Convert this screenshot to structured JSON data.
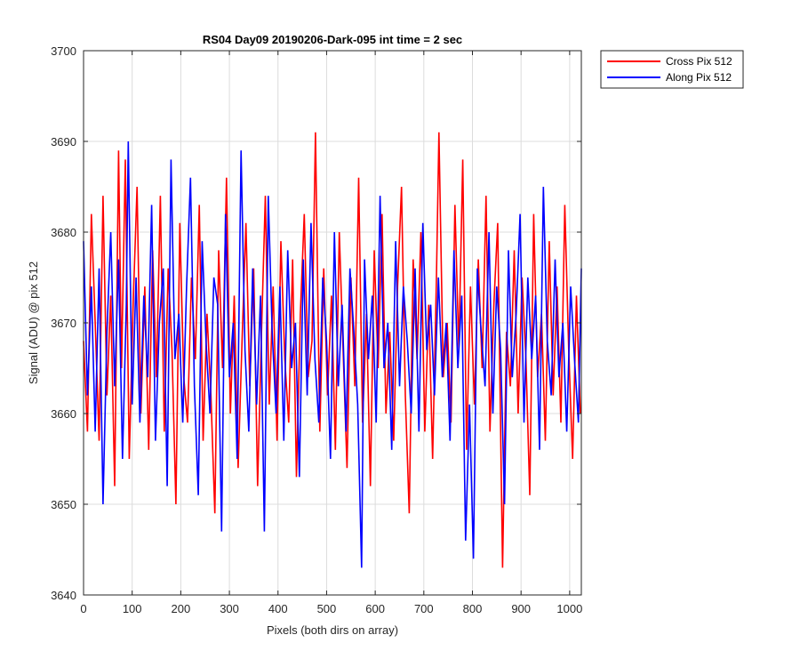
{
  "chart_data": {
    "type": "line",
    "title": "RS04 Day09 20190206-Dark-095 int time = 2 sec",
    "xlabel": "Pixels (both dirs on array)",
    "ylabel": "Signal (ADU) @ pix 512",
    "xlim": [
      0,
      1024
    ],
    "ylim": [
      3640,
      3700
    ],
    "xticks": [
      "0",
      "100",
      "200",
      "300",
      "400",
      "500",
      "600",
      "700",
      "800",
      "900",
      "1000"
    ],
    "yticks": [
      "3640",
      "3650",
      "3660",
      "3670",
      "3680",
      "3690",
      "3700"
    ],
    "grid": true,
    "legend_position": "outside-top-right",
    "series": [
      {
        "name": "Cross Pix 512",
        "color": "#ff0000",
        "x": [
          0,
          8,
          16,
          24,
          32,
          40,
          48,
          56,
          64,
          72,
          78,
          86,
          94,
          102,
          110,
          118,
          126,
          134,
          142,
          150,
          158,
          166,
          174,
          182,
          190,
          198,
          206,
          214,
          222,
          230,
          238,
          246,
          254,
          262,
          270,
          278,
          286,
          294,
          302,
          310,
          318,
          326,
          334,
          342,
          350,
          358,
          366,
          374,
          382,
          390,
          398,
          406,
          414,
          422,
          430,
          438,
          446,
          454,
          462,
          470,
          477,
          486,
          494,
          502,
          510,
          518,
          526,
          534,
          542,
          550,
          558,
          566,
          574,
          582,
          590,
          598,
          606,
          614,
          622,
          630,
          638,
          646,
          654,
          662,
          670,
          678,
          686,
          694,
          702,
          710,
          718,
          726,
          731,
          740,
          748,
          756,
          764,
          772,
          780,
          788,
          796,
          804,
          812,
          820,
          828,
          836,
          844,
          852,
          862,
          870,
          878,
          886,
          894,
          902,
          910,
          918,
          926,
          934,
          942,
          950,
          958,
          966,
          974,
          982,
          990,
          998,
          1006,
          1014,
          1022
        ],
        "values": [
          3668,
          3658,
          3682,
          3670,
          3657,
          3684,
          3662,
          3673,
          3652,
          3689,
          3665,
          3688,
          3655,
          3672,
          3685,
          3660,
          3674,
          3656,
          3678,
          3664,
          3684,
          3658,
          3676,
          3667,
          3650,
          3681,
          3664,
          3659,
          3675,
          3666,
          3683,
          3657,
          3671,
          3662,
          3649,
          3678,
          3665,
          3686,
          3660,
          3673,
          3654,
          3668,
          3681,
          3663,
          3676,
          3652,
          3669,
          3684,
          3661,
          3674,
          3657,
          3679,
          3666,
          3659,
          3677,
          3653,
          3671,
          3682,
          3664,
          3668,
          3691,
          3658,
          3676,
          3662,
          3673,
          3656,
          3680,
          3667,
          3654,
          3675,
          3663,
          3686,
          3659,
          3671,
          3652,
          3678,
          3665,
          3682,
          3660,
          3669,
          3657,
          3674,
          3685,
          3662,
          3649,
          3677,
          3666,
          3680,
          3658,
          3672,
          3655,
          3675,
          3691,
          3664,
          3670,
          3659,
          3683,
          3667,
          3688,
          3656,
          3674,
          3661,
          3677,
          3665,
          3684,
          3658,
          3672,
          3681,
          3643,
          3669,
          3663,
          3678,
          3660,
          3675,
          3666,
          3651,
          3682,
          3664,
          3671,
          3657,
          3679,
          3662,
          3674,
          3659,
          3683,
          3667,
          3655,
          3673,
          3660
        ]
      },
      {
        "name": "Along Pix 512",
        "color": "#0000ff",
        "x": [
          0,
          8,
          16,
          24,
          32,
          40,
          48,
          56,
          64,
          72,
          80,
          88,
          92,
          100,
          108,
          116,
          124,
          132,
          140,
          148,
          156,
          164,
          172,
          180,
          188,
          196,
          204,
          212,
          220,
          228,
          236,
          244,
          252,
          260,
          268,
          276,
          284,
          292,
          300,
          308,
          316,
          324,
          332,
          340,
          348,
          356,
          364,
          372,
          380,
          388,
          396,
          404,
          412,
          420,
          428,
          436,
          444,
          452,
          460,
          468,
          476,
          484,
          492,
          500,
          508,
          516,
          524,
          532,
          540,
          548,
          556,
          564,
          572,
          578,
          586,
          594,
          602,
          610,
          618,
          626,
          634,
          642,
          650,
          658,
          666,
          674,
          682,
          690,
          698,
          706,
          714,
          722,
          730,
          738,
          746,
          754,
          762,
          770,
          778,
          786,
          794,
          802,
          810,
          818,
          826,
          834,
          842,
          850,
          858,
          866,
          874,
          882,
          890,
          898,
          906,
          914,
          922,
          930,
          938,
          946,
          954,
          962,
          970,
          978,
          986,
          994,
          1002,
          1010,
          1018,
          1024
        ],
        "values": [
          3679,
          3662,
          3674,
          3658,
          3676,
          3650,
          3669,
          3680,
          3663,
          3677,
          3655,
          3672,
          3690,
          3661,
          3675,
          3659,
          3673,
          3664,
          3683,
          3657,
          3670,
          3676,
          3652,
          3688,
          3666,
          3671,
          3659,
          3674,
          3686,
          3663,
          3651,
          3679,
          3668,
          3660,
          3675,
          3672,
          3647,
          3682,
          3664,
          3670,
          3655,
          3689,
          3667,
          3658,
          3676,
          3661,
          3673,
          3647,
          3684,
          3669,
          3660,
          3674,
          3657,
          3678,
          3665,
          3670,
          3653,
          3677,
          3662,
          3681,
          3666,
          3659,
          3675,
          3668,
          3655,
          3680,
          3663,
          3672,
          3658,
          3676,
          3669,
          3661,
          3643,
          3677,
          3666,
          3673,
          3659,
          3684,
          3665,
          3670,
          3656,
          3679,
          3663,
          3674,
          3668,
          3660,
          3676,
          3658,
          3681,
          3667,
          3672,
          3662,
          3675,
          3664,
          3670,
          3657,
          3678,
          3665,
          3673,
          3646,
          3661,
          3644,
          3676,
          3669,
          3663,
          3680,
          3660,
          3674,
          3667,
          3650,
          3678,
          3664,
          3671,
          3682,
          3659,
          3675,
          3666,
          3673,
          3656,
          3685,
          3668,
          3662,
          3677,
          3664,
          3670,
          3658,
          3674,
          3666,
          3659,
          3676
        ]
      }
    ]
  }
}
